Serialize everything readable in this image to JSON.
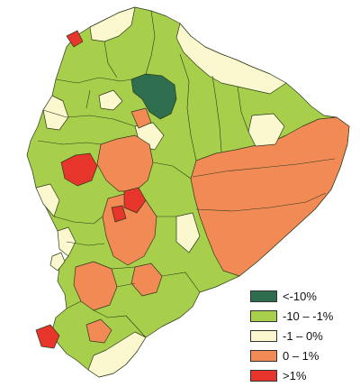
{
  "map": {
    "colors": {
      "dark_green": "#2e6e4e",
      "light_green": "#a8cf4c",
      "cream": "#fbf7cf",
      "orange": "#f28a55",
      "red": "#e8352c",
      "boundary": "#2a3a1a"
    }
  },
  "legend": {
    "items": [
      {
        "label": "<-10%",
        "color": "#2e6e4e"
      },
      {
        "label": "-10 – -1%",
        "color": "#a8cf4c"
      },
      {
        "label": "-1 – 0%",
        "color": "#fbf7cf"
      },
      {
        "label": "0 – 1%",
        "color": "#f28a55"
      },
      {
        "label": ">1%",
        "color": "#e8352c"
      }
    ]
  }
}
